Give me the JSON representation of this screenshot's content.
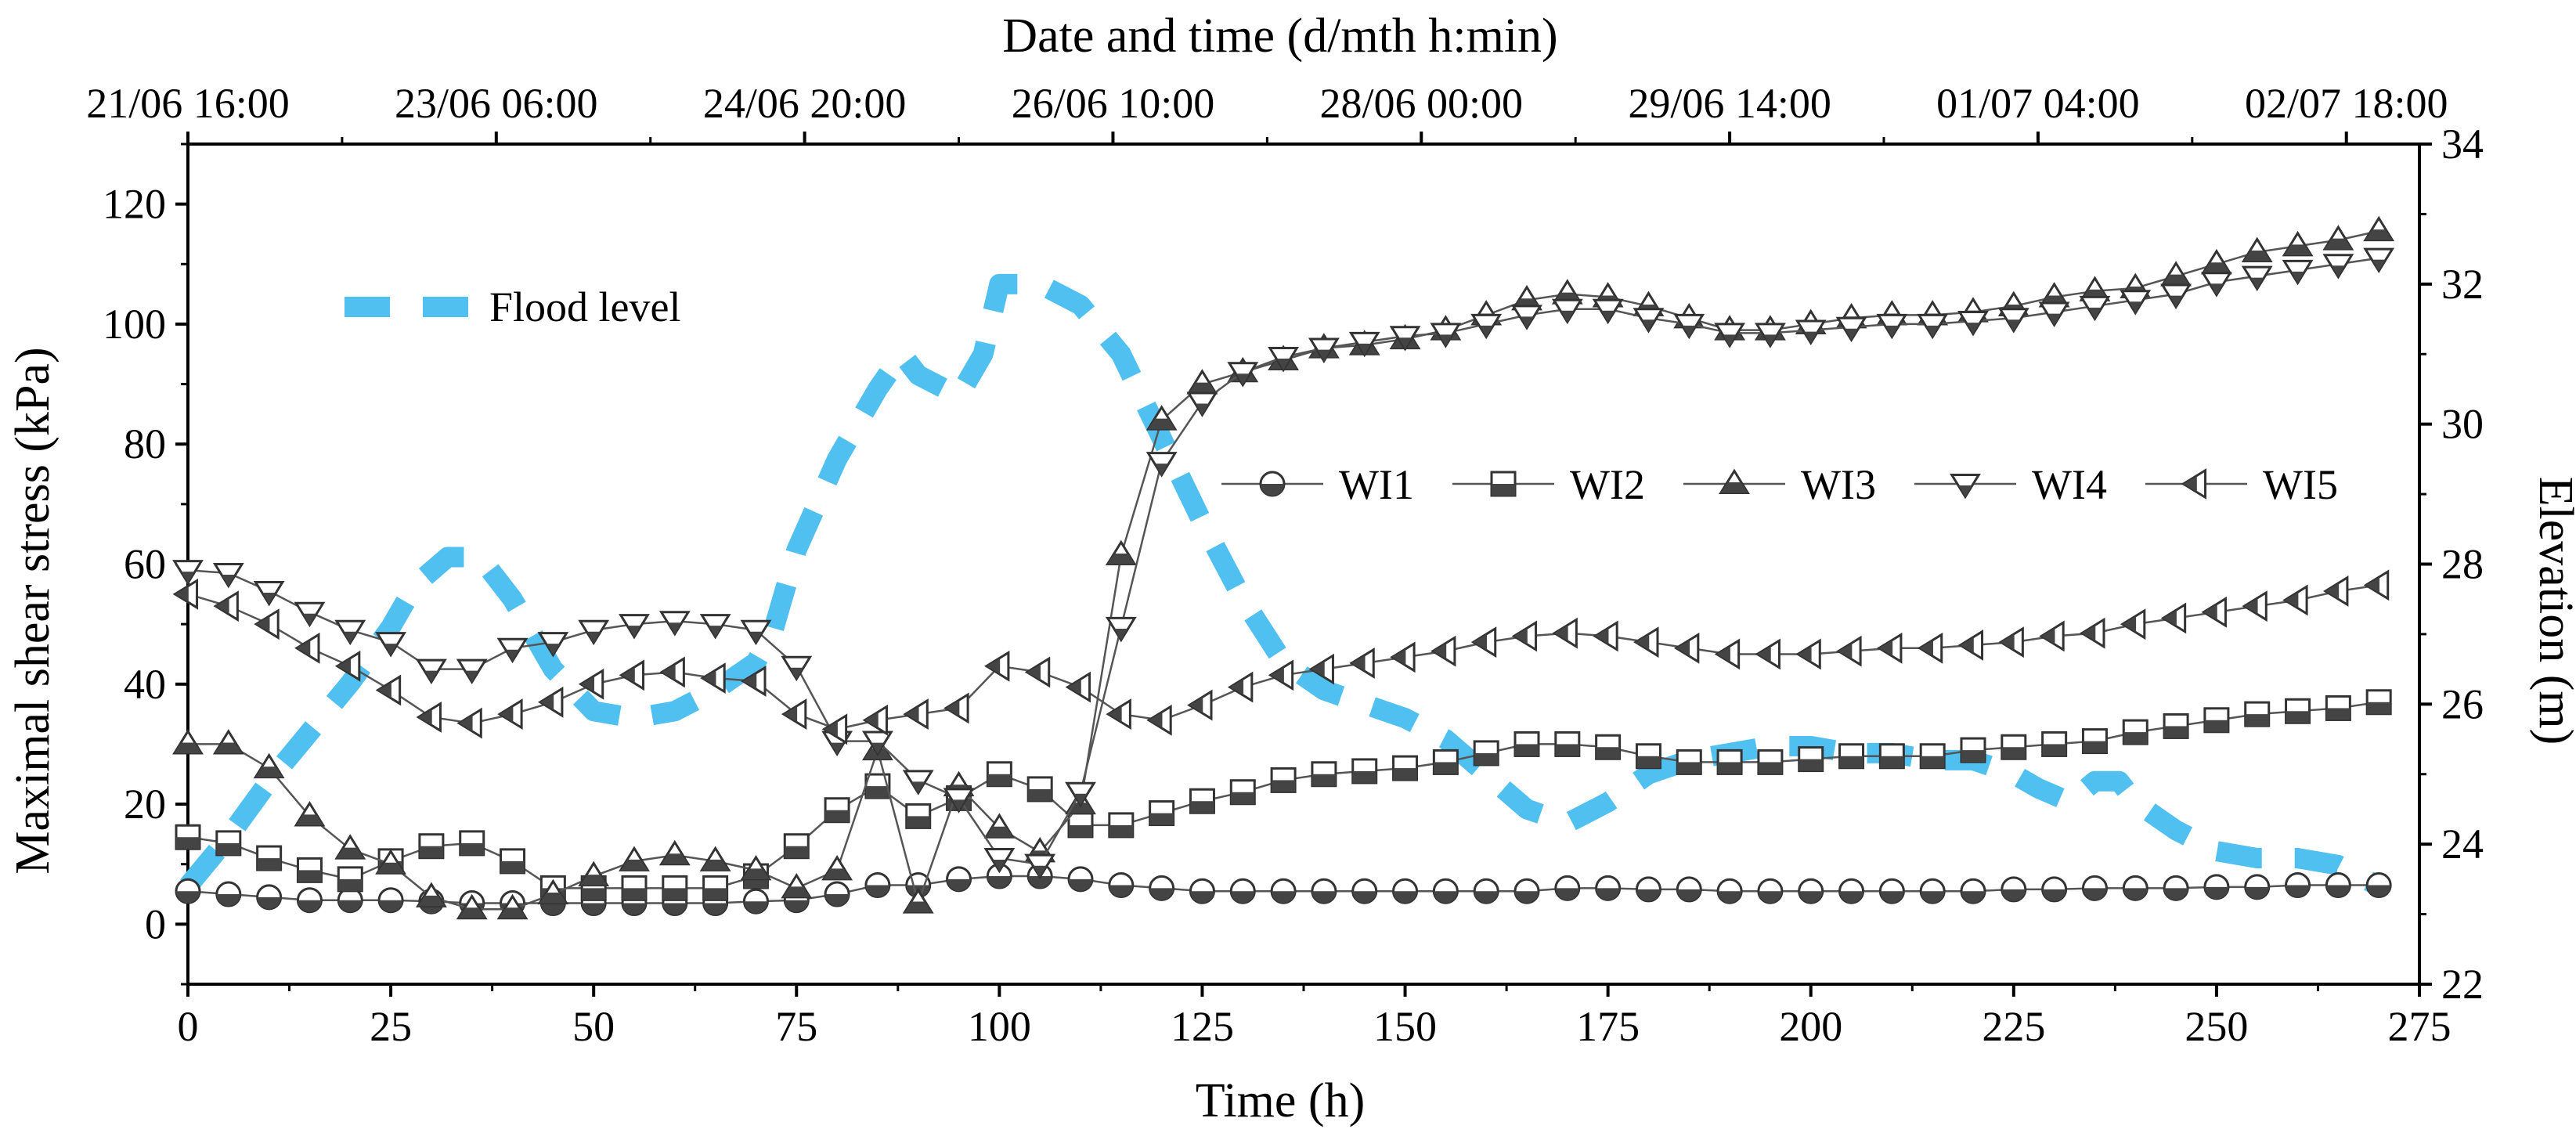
{
  "chart_data": {
    "type": "line",
    "xlabel": "Time (h)",
    "ylabel_left": "Maximal shear stress (kPa)",
    "ylabel_right": "Elevation (m)",
    "xlabel_top": "Date and time (d/mth h:min)",
    "xlim": [
      0,
      275
    ],
    "ylim_left": [
      -10,
      130
    ],
    "ylim_right": [
      22,
      34
    ],
    "x_ticks": [
      "0",
      "25",
      "50",
      "75",
      "100",
      "125",
      "150",
      "175",
      "200",
      "225",
      "250",
      "275"
    ],
    "y_ticks_left": [
      "0",
      "20",
      "40",
      "60",
      "80",
      "100",
      "120"
    ],
    "y_ticks_right": [
      "22",
      "24",
      "26",
      "28",
      "30",
      "32",
      "34"
    ],
    "top_ticks": [
      {
        "x": 0,
        "label": "21/06 16:00"
      },
      {
        "x": 38,
        "label": "23/06 06:00"
      },
      {
        "x": 76,
        "label": "24/06 20:00"
      },
      {
        "x": 114,
        "label": "26/06 10:00"
      },
      {
        "x": 152,
        "label": "28/06 00:00"
      },
      {
        "x": 190,
        "label": "29/06 14:00"
      },
      {
        "x": 228,
        "label": "01/07 04:00"
      },
      {
        "x": 266,
        "label": "02/07 18:00"
      }
    ],
    "flood_level": {
      "name": "Flood level",
      "color": "#4fc0f0",
      "axis": "right",
      "x": [
        0,
        5,
        10,
        15,
        20,
        25,
        28,
        32,
        36,
        40,
        45,
        50,
        55,
        60,
        65,
        70,
        72,
        75,
        80,
        85,
        88,
        90,
        95,
        98,
        100,
        105,
        110,
        115,
        120,
        125,
        130,
        135,
        140,
        145,
        150,
        155,
        160,
        165,
        170,
        175,
        180,
        185,
        190,
        195,
        200,
        205,
        210,
        215,
        220,
        225,
        228,
        232,
        235,
        238,
        240,
        245,
        250,
        255,
        260,
        265,
        270
      ],
      "y": [
        23.4,
        24.1,
        24.9,
        25.6,
        26.3,
        27.1,
        27.7,
        28.1,
        28.1,
        27.5,
        26.5,
        25.9,
        25.8,
        25.9,
        26.2,
        26.6,
        27.0,
        28.2,
        29.5,
        30.5,
        31.0,
        30.7,
        30.4,
        31.0,
        32.0,
        32.0,
        31.7,
        31.0,
        29.8,
        28.6,
        27.5,
        26.6,
        26.2,
        26.0,
        25.8,
        25.5,
        25.0,
        24.5,
        24.3,
        24.6,
        25.0,
        25.2,
        25.3,
        25.4,
        25.4,
        25.3,
        25.3,
        25.2,
        25.2,
        25.0,
        24.8,
        24.6,
        24.9,
        24.9,
        24.6,
        24.2,
        23.9,
        23.8,
        23.8,
        23.7,
        23.4
      ]
    },
    "series": [
      {
        "name": "WI1",
        "marker": "circle",
        "x": [
          0,
          5,
          10,
          15,
          20,
          25,
          30,
          35,
          40,
          45,
          50,
          55,
          60,
          65,
          70,
          75,
          80,
          85,
          90,
          95,
          100,
          105,
          110,
          115,
          120,
          125,
          130,
          135,
          140,
          145,
          150,
          155,
          160,
          165,
          170,
          175,
          180,
          185,
          190,
          195,
          200,
          205,
          210,
          215,
          220,
          225,
          230,
          235,
          240,
          245,
          250,
          255,
          260,
          265,
          270
        ],
        "values": [
          5.5,
          5,
          4.5,
          4,
          4,
          4,
          3.8,
          3.5,
          3.5,
          3.5,
          3.5,
          3.5,
          3.5,
          3.5,
          3.8,
          4,
          5,
          6.5,
          6.5,
          7.5,
          8,
          8,
          7.5,
          6.5,
          6,
          5.5,
          5.5,
          5.5,
          5.5,
          5.5,
          5.5,
          5.5,
          5.5,
          5.5,
          6,
          6,
          5.8,
          5.8,
          5.5,
          5.5,
          5.5,
          5.5,
          5.5,
          5.5,
          5.5,
          5.8,
          5.8,
          6,
          6,
          6,
          6.2,
          6.2,
          6.5,
          6.5,
          6.5
        ]
      },
      {
        "name": "WI2",
        "marker": "square",
        "x": [
          0,
          5,
          10,
          15,
          20,
          25,
          30,
          35,
          40,
          45,
          50,
          55,
          60,
          65,
          70,
          75,
          80,
          85,
          90,
          95,
          100,
          105,
          110,
          115,
          120,
          125,
          130,
          135,
          140,
          145,
          150,
          155,
          160,
          165,
          170,
          175,
          180,
          185,
          190,
          195,
          200,
          205,
          210,
          215,
          220,
          225,
          230,
          235,
          240,
          245,
          250,
          255,
          260,
          265,
          270
        ],
        "values": [
          14.5,
          13.5,
          11,
          9,
          7.5,
          10.5,
          13,
          13.5,
          10.5,
          6,
          6,
          6,
          6,
          6,
          8,
          13,
          19,
          23,
          18,
          21,
          25,
          22.5,
          16.5,
          16.5,
          18.5,
          20.5,
          22,
          24,
          25,
          25.5,
          26,
          27,
          28.5,
          30,
          30,
          29.5,
          28,
          27,
          27,
          27,
          27.5,
          28,
          28,
          28,
          29,
          29.5,
          30,
          30.5,
          32,
          33,
          34,
          35,
          35.5,
          36,
          37
        ]
      },
      {
        "name": "WI3",
        "marker": "triangle-up",
        "x": [
          0,
          5,
          10,
          15,
          20,
          25,
          30,
          35,
          40,
          45,
          50,
          55,
          60,
          65,
          70,
          75,
          80,
          85,
          90,
          95,
          100,
          105,
          110,
          115,
          120,
          125,
          130,
          135,
          140,
          145,
          150,
          155,
          160,
          165,
          170,
          175,
          180,
          185,
          190,
          195,
          200,
          205,
          210,
          215,
          220,
          225,
          230,
          235,
          240,
          245,
          250,
          255,
          260,
          265,
          270
        ],
        "values": [
          30,
          30,
          26,
          18,
          12.5,
          10,
          4.5,
          2.5,
          2.5,
          5,
          8,
          10.5,
          11.5,
          10.5,
          9,
          6,
          9,
          29,
          3.5,
          23,
          16,
          12,
          20,
          61.5,
          84,
          90,
          92,
          94,
          96,
          96.5,
          97.5,
          99,
          101.5,
          104,
          105,
          104.5,
          103,
          101,
          99,
          99,
          100,
          101,
          101.5,
          101.5,
          102,
          103,
          104.5,
          105.5,
          106,
          108,
          110,
          112,
          113,
          114,
          115.5
        ]
      },
      {
        "name": "WI4",
        "marker": "triangle-down",
        "x": [
          0,
          5,
          10,
          15,
          20,
          25,
          30,
          35,
          40,
          45,
          50,
          55,
          60,
          65,
          70,
          75,
          80,
          85,
          90,
          95,
          100,
          105,
          110,
          115,
          120,
          125,
          130,
          135,
          140,
          145,
          150,
          155,
          160,
          165,
          170,
          175,
          180,
          185,
          190,
          195,
          200,
          205,
          210,
          215,
          220,
          225,
          230,
          235,
          240,
          245,
          250,
          255,
          260,
          265,
          270
        ],
        "values": [
          59,
          58.5,
          55.5,
          52,
          49,
          47,
          42.5,
          42.5,
          46,
          47,
          49,
          50,
          50.5,
          50,
          49,
          43,
          30.5,
          30.5,
          24,
          21,
          11,
          10,
          22,
          49.5,
          77,
          87,
          92,
          94.5,
          96,
          97,
          98,
          98.5,
          100,
          101.5,
          102.5,
          102.5,
          101,
          100,
          98.5,
          98.5,
          99,
          99.5,
          100,
          100,
          100.5,
          101,
          102,
          103,
          104,
          105,
          107,
          108,
          109,
          110,
          111
        ]
      },
      {
        "name": "WI5",
        "marker": "triangle-left",
        "x": [
          0,
          5,
          10,
          15,
          20,
          25,
          30,
          35,
          40,
          45,
          50,
          55,
          60,
          65,
          70,
          75,
          80,
          85,
          90,
          95,
          100,
          105,
          110,
          115,
          120,
          125,
          130,
          135,
          140,
          145,
          150,
          155,
          160,
          165,
          170,
          175,
          180,
          185,
          190,
          195,
          200,
          205,
          210,
          215,
          220,
          225,
          230,
          235,
          240,
          245,
          250,
          255,
          260,
          265,
          270
        ],
        "values": [
          55,
          53,
          50,
          46,
          43,
          39,
          34.5,
          33.5,
          35,
          37,
          40,
          41.5,
          42,
          41,
          40.5,
          35,
          32.5,
          34,
          35,
          36,
          43,
          42,
          39.5,
          35,
          34,
          36.5,
          39.5,
          41.5,
          42.5,
          43.5,
          44.5,
          45.5,
          47,
          48,
          48.5,
          48,
          47,
          46,
          45,
          45,
          45,
          45.5,
          46,
          46,
          46.5,
          47,
          48,
          48.5,
          50,
          51,
          52,
          53,
          54,
          55.5,
          56.5
        ]
      }
    ]
  }
}
